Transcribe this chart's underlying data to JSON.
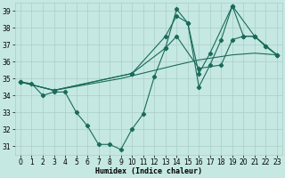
{
  "xlabel": "Humidex (Indice chaleur)",
  "xlim": [
    -0.5,
    23.5
  ],
  "ylim": [
    30.5,
    39.5
  ],
  "xticks": [
    0,
    1,
    2,
    3,
    4,
    5,
    6,
    7,
    8,
    9,
    10,
    11,
    12,
    13,
    14,
    15,
    16,
    17,
    18,
    19,
    20,
    21,
    22,
    23
  ],
  "yticks": [
    31,
    32,
    33,
    34,
    35,
    36,
    37,
    38,
    39
  ],
  "bg_color": "#c5e8e2",
  "line_color": "#1a6b5a",
  "grid_color": "#aacfc8",
  "line1": {
    "x": [
      0,
      1,
      2,
      3,
      4,
      5,
      6,
      7,
      8,
      9,
      10,
      11,
      12,
      13,
      14,
      15,
      16,
      17,
      18,
      19,
      20,
      21,
      22,
      23
    ],
    "y": [
      34.8,
      34.7,
      34.0,
      34.2,
      34.2,
      33.0,
      32.2,
      31.1,
      31.1,
      30.8,
      32.0,
      32.9,
      35.1,
      36.8,
      39.1,
      38.3,
      34.5,
      35.8,
      37.3,
      39.3,
      37.5,
      37.5,
      36.9,
      36.4
    ]
  },
  "line2": {
    "x": [
      0,
      3,
      9,
      14,
      16,
      19,
      21,
      23
    ],
    "y": [
      34.8,
      34.3,
      35.0,
      35.8,
      36.1,
      36.4,
      36.5,
      36.4
    ]
  },
  "line3": {
    "x": [
      0,
      3,
      10,
      13,
      14,
      15,
      16,
      17,
      19,
      21,
      23
    ],
    "y": [
      34.8,
      34.3,
      35.3,
      37.5,
      38.7,
      38.3,
      35.3,
      36.5,
      39.3,
      37.5,
      36.4
    ]
  },
  "line4": {
    "x": [
      0,
      3,
      10,
      13,
      14,
      16,
      18,
      19,
      20,
      21,
      22,
      23
    ],
    "y": [
      34.8,
      34.3,
      35.3,
      36.8,
      37.5,
      35.6,
      35.8,
      37.3,
      37.5,
      37.5,
      36.9,
      36.4
    ]
  }
}
